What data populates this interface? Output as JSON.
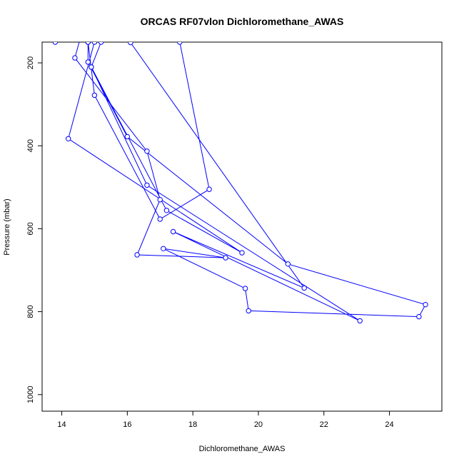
{
  "chart_data": {
    "type": "line",
    "title": "ORCAS RF07vlon Dichloromethane_AWAS",
    "xlabel": "Dichloromethane_AWAS",
    "ylabel": "Pressure (mbar)",
    "xlim": [
      13.4,
      25.6
    ],
    "ylim": [
      1040,
      150
    ],
    "y_reversed": true,
    "x_ticks": [
      14,
      16,
      18,
      20,
      22,
      24
    ],
    "y_ticks": [
      200,
      400,
      600,
      800,
      1000
    ],
    "grid": false,
    "legend": "none",
    "series": [
      {
        "color": "#0000ff",
        "marker": "open-circle",
        "points": [
          [
            13.8,
            150
          ],
          [
            14.0,
            120
          ],
          [
            14.6,
            130
          ],
          [
            14.4,
            188
          ],
          [
            16.6,
            413
          ],
          [
            17.0,
            530
          ],
          [
            16.3,
            663
          ],
          [
            19.0,
            670
          ],
          [
            17.1,
            648
          ],
          [
            19.6,
            744
          ],
          [
            19.7,
            798
          ],
          [
            24.9,
            812
          ],
          [
            25.1,
            783
          ],
          [
            20.9,
            685
          ],
          [
            16.0,
            378
          ],
          [
            14.8,
            198
          ],
          [
            14.8,
            150
          ],
          [
            14.9,
            125
          ],
          [
            15.2,
            150
          ],
          [
            14.9,
            210
          ],
          [
            16.6,
            495
          ],
          [
            23.1,
            822
          ],
          [
            17.4,
            607
          ],
          [
            21.4,
            743
          ],
          [
            16.1,
            151
          ],
          [
            15.3,
            120
          ],
          [
            17.6,
            150
          ],
          [
            18.5,
            505
          ],
          [
            17.0,
            577
          ],
          [
            15.0,
            278
          ],
          [
            14.8,
            150
          ],
          [
            14.8,
            150
          ],
          [
            15.0,
            150
          ],
          [
            15.1,
            120
          ],
          [
            14.2,
            383
          ],
          [
            19.5,
            658
          ],
          [
            17.2,
            556
          ],
          [
            14.9,
            210
          ]
        ]
      }
    ]
  }
}
